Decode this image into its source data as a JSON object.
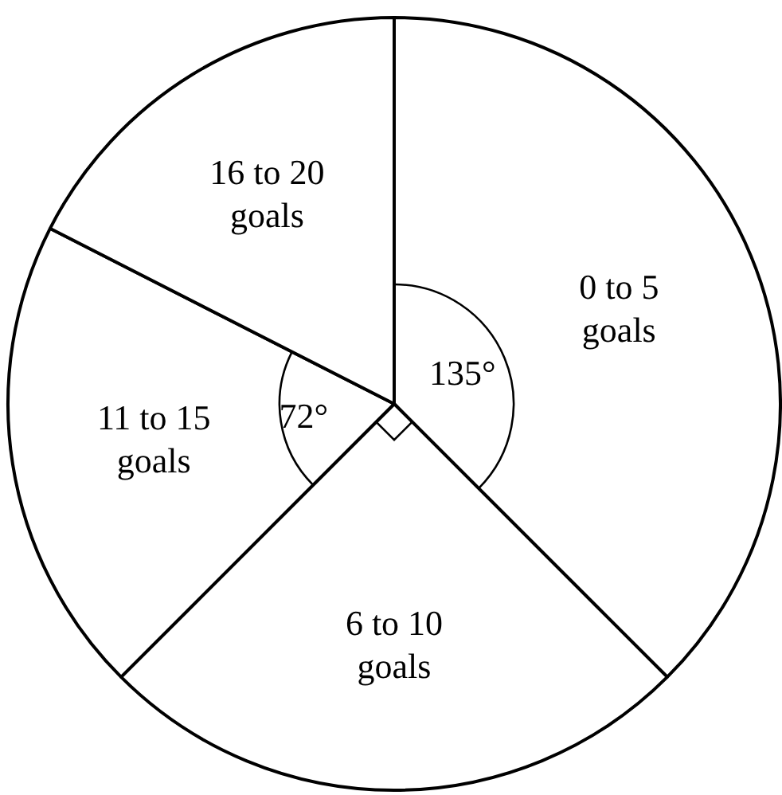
{
  "chart_data": {
    "type": "pie",
    "categories": [
      "0 to 5 goals",
      "6 to 10 goals",
      "11 to 15 goals",
      "16 to 20 goals"
    ],
    "values": [
      135,
      90,
      72,
      63
    ],
    "colors": [
      "#ffffff",
      "#ffffff",
      "#ffffff",
      "#ffffff"
    ],
    "value_labels": [
      "135°",
      null,
      "72°",
      null
    ],
    "legend": false
  }
}
